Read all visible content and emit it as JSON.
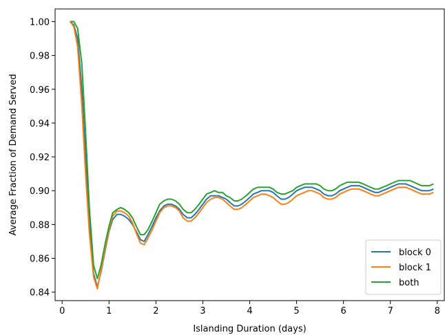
{
  "chart_data": {
    "type": "line",
    "title": "",
    "xlabel": "Islanding Duration (days)",
    "ylabel": "Average Fraction of Demand Served",
    "xlim": [
      -0.15,
      8.15
    ],
    "ylim": [
      0.835,
      1.0075
    ],
    "xticks": [
      0,
      1,
      2,
      3,
      4,
      5,
      6,
      7,
      8
    ],
    "yticks": [
      0.84,
      0.86,
      0.88,
      0.9,
      0.92,
      0.94,
      0.96,
      0.98,
      1.0
    ],
    "ytick_labels": [
      "0.84",
      "0.86",
      "0.88",
      "0.90",
      "0.92",
      "0.94",
      "0.96",
      "0.98",
      "1.00"
    ],
    "grid": false,
    "legend_position": "lower right",
    "x": [
      0.17,
      0.25,
      0.33,
      0.42,
      0.5,
      0.58,
      0.67,
      0.75,
      0.83,
      0.92,
      1.0,
      1.08,
      1.17,
      1.25,
      1.33,
      1.42,
      1.5,
      1.58,
      1.67,
      1.75,
      1.83,
      1.92,
      2.0,
      2.08,
      2.17,
      2.25,
      2.33,
      2.42,
      2.5,
      2.58,
      2.67,
      2.75,
      2.83,
      2.92,
      3.0,
      3.08,
      3.17,
      3.25,
      3.33,
      3.42,
      3.5,
      3.58,
      3.67,
      3.75,
      3.83,
      3.92,
      4.0,
      4.08,
      4.17,
      4.25,
      4.33,
      4.42,
      4.5,
      4.58,
      4.67,
      4.75,
      4.83,
      4.92,
      5.0,
      5.08,
      5.17,
      5.25,
      5.33,
      5.42,
      5.5,
      5.58,
      5.67,
      5.75,
      5.83,
      5.92,
      6.0,
      6.08,
      6.17,
      6.25,
      6.33,
      6.42,
      6.5,
      6.58,
      6.67,
      6.75,
      6.83,
      6.92,
      7.0,
      7.08,
      7.17,
      7.25,
      7.33,
      7.42,
      7.5,
      7.58,
      7.67,
      7.75,
      7.83,
      7.92
    ],
    "series": [
      {
        "name": "block 0",
        "color": "#1f77b4",
        "values": [
          1.0,
          0.998,
          0.99,
          0.96,
          0.92,
          0.88,
          0.851,
          0.843,
          0.852,
          0.865,
          0.876,
          0.883,
          0.886,
          0.886,
          0.885,
          0.883,
          0.88,
          0.876,
          0.871,
          0.87,
          0.874,
          0.879,
          0.884,
          0.888,
          0.891,
          0.892,
          0.892,
          0.891,
          0.889,
          0.886,
          0.884,
          0.884,
          0.886,
          0.889,
          0.892,
          0.895,
          0.897,
          0.897,
          0.897,
          0.896,
          0.895,
          0.893,
          0.891,
          0.891,
          0.892,
          0.894,
          0.896,
          0.898,
          0.899,
          0.9,
          0.9,
          0.9,
          0.899,
          0.897,
          0.895,
          0.895,
          0.896,
          0.898,
          0.9,
          0.901,
          0.902,
          0.902,
          0.902,
          0.901,
          0.9,
          0.898,
          0.897,
          0.897,
          0.898,
          0.9,
          0.901,
          0.902,
          0.903,
          0.903,
          0.903,
          0.902,
          0.901,
          0.9,
          0.899,
          0.899,
          0.9,
          0.901,
          0.902,
          0.903,
          0.904,
          0.904,
          0.904,
          0.903,
          0.902,
          0.901,
          0.9,
          0.9,
          0.9,
          0.901
        ]
      },
      {
        "name": "block 1",
        "color": "#ff7f0e",
        "values": [
          1.0,
          0.997,
          0.985,
          0.95,
          0.91,
          0.875,
          0.849,
          0.842,
          0.853,
          0.866,
          0.877,
          0.885,
          0.888,
          0.888,
          0.887,
          0.885,
          0.881,
          0.875,
          0.869,
          0.868,
          0.872,
          0.877,
          0.882,
          0.887,
          0.89,
          0.891,
          0.891,
          0.89,
          0.888,
          0.884,
          0.882,
          0.882,
          0.884,
          0.887,
          0.89,
          0.893,
          0.895,
          0.896,
          0.896,
          0.895,
          0.893,
          0.891,
          0.889,
          0.889,
          0.89,
          0.892,
          0.894,
          0.896,
          0.897,
          0.898,
          0.898,
          0.897,
          0.896,
          0.894,
          0.892,
          0.892,
          0.893,
          0.895,
          0.897,
          0.898,
          0.899,
          0.9,
          0.9,
          0.899,
          0.898,
          0.896,
          0.895,
          0.895,
          0.896,
          0.898,
          0.899,
          0.9,
          0.901,
          0.901,
          0.901,
          0.9,
          0.899,
          0.898,
          0.897,
          0.897,
          0.898,
          0.899,
          0.9,
          0.901,
          0.902,
          0.902,
          0.902,
          0.901,
          0.9,
          0.899,
          0.898,
          0.898,
          0.898,
          0.899
        ]
      },
      {
        "name": "both",
        "color": "#2ca02c",
        "values": [
          1.0,
          1.0,
          0.996,
          0.975,
          0.935,
          0.89,
          0.856,
          0.848,
          0.856,
          0.869,
          0.879,
          0.887,
          0.889,
          0.89,
          0.889,
          0.887,
          0.884,
          0.879,
          0.874,
          0.874,
          0.877,
          0.882,
          0.887,
          0.892,
          0.894,
          0.895,
          0.895,
          0.894,
          0.892,
          0.889,
          0.887,
          0.887,
          0.889,
          0.892,
          0.895,
          0.898,
          0.899,
          0.9,
          0.899,
          0.899,
          0.897,
          0.896,
          0.894,
          0.894,
          0.895,
          0.897,
          0.899,
          0.901,
          0.902,
          0.902,
          0.902,
          0.902,
          0.901,
          0.899,
          0.898,
          0.898,
          0.899,
          0.9,
          0.902,
          0.903,
          0.904,
          0.904,
          0.904,
          0.904,
          0.903,
          0.901,
          0.9,
          0.9,
          0.901,
          0.903,
          0.904,
          0.905,
          0.905,
          0.905,
          0.905,
          0.904,
          0.903,
          0.902,
          0.901,
          0.901,
          0.902,
          0.903,
          0.904,
          0.905,
          0.906,
          0.906,
          0.906,
          0.906,
          0.905,
          0.904,
          0.903,
          0.903,
          0.903,
          0.904
        ]
      }
    ]
  }
}
